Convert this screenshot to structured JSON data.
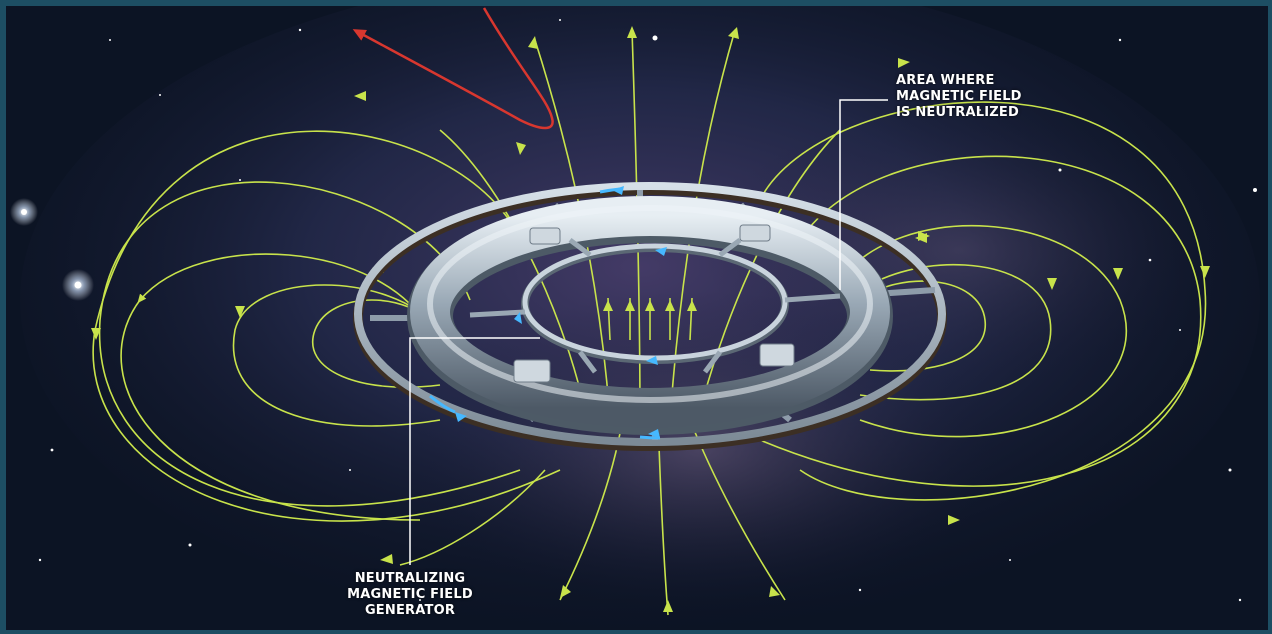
{
  "callouts": {
    "neutralized_area": [
      "AREA WHERE",
      "MAGNETIC FIELD",
      "IS NEUTRALIZED"
    ],
    "generator": [
      "NEUTRALIZING",
      "MAGNETIC FIELD",
      "GENERATOR"
    ]
  },
  "colors": {
    "background": "#0b1b2a",
    "frame": "#1d4e63",
    "field_lines": "#c8e34b",
    "particle_path": "#d8372f",
    "ring_metal": "#a9b7c3",
    "ring_flow": "#46b8ff",
    "leader_lines": "#ffffff"
  }
}
